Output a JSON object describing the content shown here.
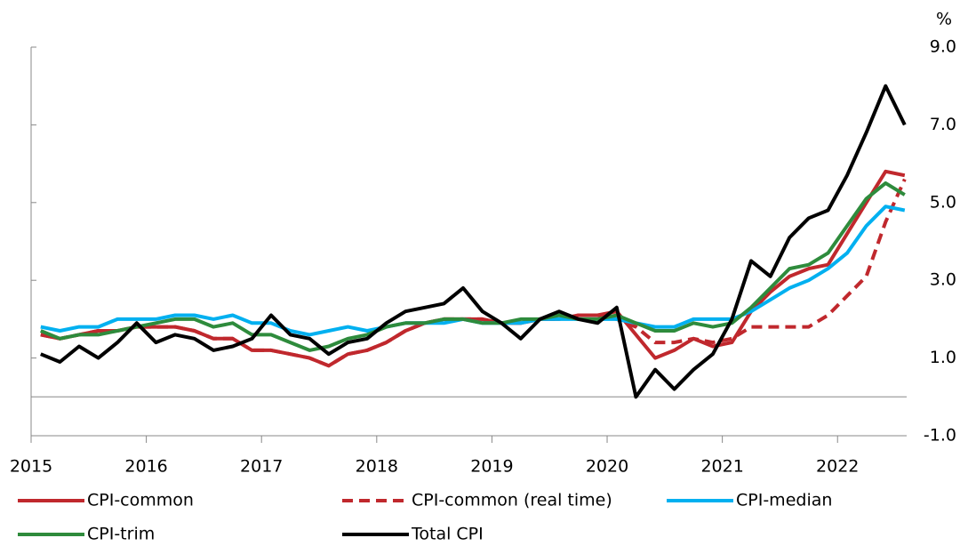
{
  "chart_data": {
    "type": "line",
    "y_unit": "%",
    "x": [
      2015.083,
      2015.25,
      2015.417,
      2015.583,
      2015.75,
      2015.917,
      2016.083,
      2016.25,
      2016.417,
      2016.583,
      2016.75,
      2016.917,
      2017.083,
      2017.25,
      2017.417,
      2017.583,
      2017.75,
      2017.917,
      2018.083,
      2018.25,
      2018.417,
      2018.583,
      2018.75,
      2018.917,
      2019.083,
      2019.25,
      2019.417,
      2019.583,
      2019.75,
      2019.917,
      2020.083,
      2020.25,
      2020.417,
      2020.583,
      2020.75,
      2020.917,
      2021.083,
      2021.25,
      2021.417,
      2021.583,
      2021.75,
      2021.917,
      2022.083,
      2022.25,
      2022.417,
      2022.583
    ],
    "series": [
      {
        "name": "CPI-common",
        "color": "#c0282d",
        "dash": false,
        "values": [
          1.6,
          1.5,
          1.6,
          1.7,
          1.7,
          1.8,
          1.8,
          1.8,
          1.7,
          1.5,
          1.5,
          1.2,
          1.2,
          1.1,
          1.0,
          0.8,
          1.1,
          1.2,
          1.4,
          1.7,
          1.9,
          2.0,
          2.0,
          2.0,
          1.9,
          1.9,
          2.0,
          2.0,
          2.1,
          2.1,
          2.2,
          1.6,
          1.0,
          1.2,
          1.5,
          1.3,
          1.4,
          2.2,
          2.7,
          3.1,
          3.3,
          3.4,
          4.2,
          5.0,
          5.8,
          5.7
        ]
      },
      {
        "name": "CPI-common (real time)",
        "color": "#c0282d",
        "dash": true,
        "values": [
          1.6,
          1.5,
          1.6,
          1.7,
          1.7,
          1.8,
          1.8,
          1.8,
          1.7,
          1.5,
          1.5,
          1.2,
          1.2,
          1.1,
          1.0,
          0.8,
          1.1,
          1.2,
          1.4,
          1.7,
          1.9,
          2.0,
          2.0,
          2.0,
          1.9,
          1.9,
          2.0,
          2.0,
          2.1,
          2.1,
          2.0,
          1.8,
          1.4,
          1.4,
          1.5,
          1.4,
          1.5,
          1.8,
          1.8,
          1.8,
          1.8,
          2.1,
          2.6,
          3.1,
          4.5,
          5.6
        ]
      },
      {
        "name": "CPI-median",
        "color": "#00b0f0",
        "dash": false,
        "values": [
          1.8,
          1.7,
          1.8,
          1.8,
          2.0,
          2.0,
          2.0,
          2.1,
          2.1,
          2.0,
          2.1,
          1.9,
          1.9,
          1.7,
          1.6,
          1.7,
          1.8,
          1.7,
          1.8,
          1.9,
          1.9,
          1.9,
          2.0,
          1.9,
          1.9,
          1.9,
          2.0,
          2.0,
          2.0,
          2.0,
          2.0,
          1.9,
          1.8,
          1.8,
          2.0,
          2.0,
          2.0,
          2.2,
          2.5,
          2.8,
          3.0,
          3.3,
          3.7,
          4.4,
          4.9,
          4.8
        ]
      },
      {
        "name": "CPI-trim",
        "color": "#2e8b3c",
        "dash": false,
        "values": [
          1.7,
          1.5,
          1.6,
          1.6,
          1.7,
          1.8,
          1.9,
          2.0,
          2.0,
          1.8,
          1.9,
          1.6,
          1.6,
          1.4,
          1.2,
          1.3,
          1.5,
          1.6,
          1.8,
          1.9,
          1.9,
          2.0,
          2.0,
          1.9,
          1.9,
          2.0,
          2.0,
          2.1,
          2.0,
          2.0,
          2.1,
          1.9,
          1.7,
          1.7,
          1.9,
          1.8,
          1.9,
          2.3,
          2.8,
          3.3,
          3.4,
          3.7,
          4.4,
          5.1,
          5.5,
          5.2
        ]
      },
      {
        "name": "Total CPI",
        "color": "#000000",
        "dash": false,
        "values": [
          1.1,
          0.9,
          1.3,
          1.0,
          1.4,
          1.9,
          1.4,
          1.6,
          1.5,
          1.2,
          1.3,
          1.5,
          2.1,
          1.6,
          1.5,
          1.1,
          1.4,
          1.5,
          1.9,
          2.2,
          2.3,
          2.4,
          2.8,
          2.2,
          1.9,
          1.5,
          2.0,
          2.2,
          2.0,
          1.9,
          2.3,
          0.0,
          0.7,
          0.2,
          0.7,
          1.1,
          2.0,
          3.5,
          3.1,
          4.1,
          4.6,
          4.8,
          5.7,
          6.8,
          8.0,
          7.0
        ]
      }
    ],
    "xlim": [
      2015,
      2022.6
    ],
    "xticks": [
      2015,
      2016,
      2017,
      2018,
      2019,
      2020,
      2021,
      2022
    ],
    "ylim": [
      -1,
      9
    ],
    "yticks": [
      {
        "value": -1,
        "label": "-1.0"
      },
      {
        "value": 1,
        "label": "1.0"
      },
      {
        "value": 3,
        "label": "3.0"
      },
      {
        "value": 5,
        "label": "5.0"
      },
      {
        "value": 7,
        "label": "7.0"
      },
      {
        "value": 9,
        "label": "9.0"
      }
    ],
    "legend": "bottom"
  }
}
